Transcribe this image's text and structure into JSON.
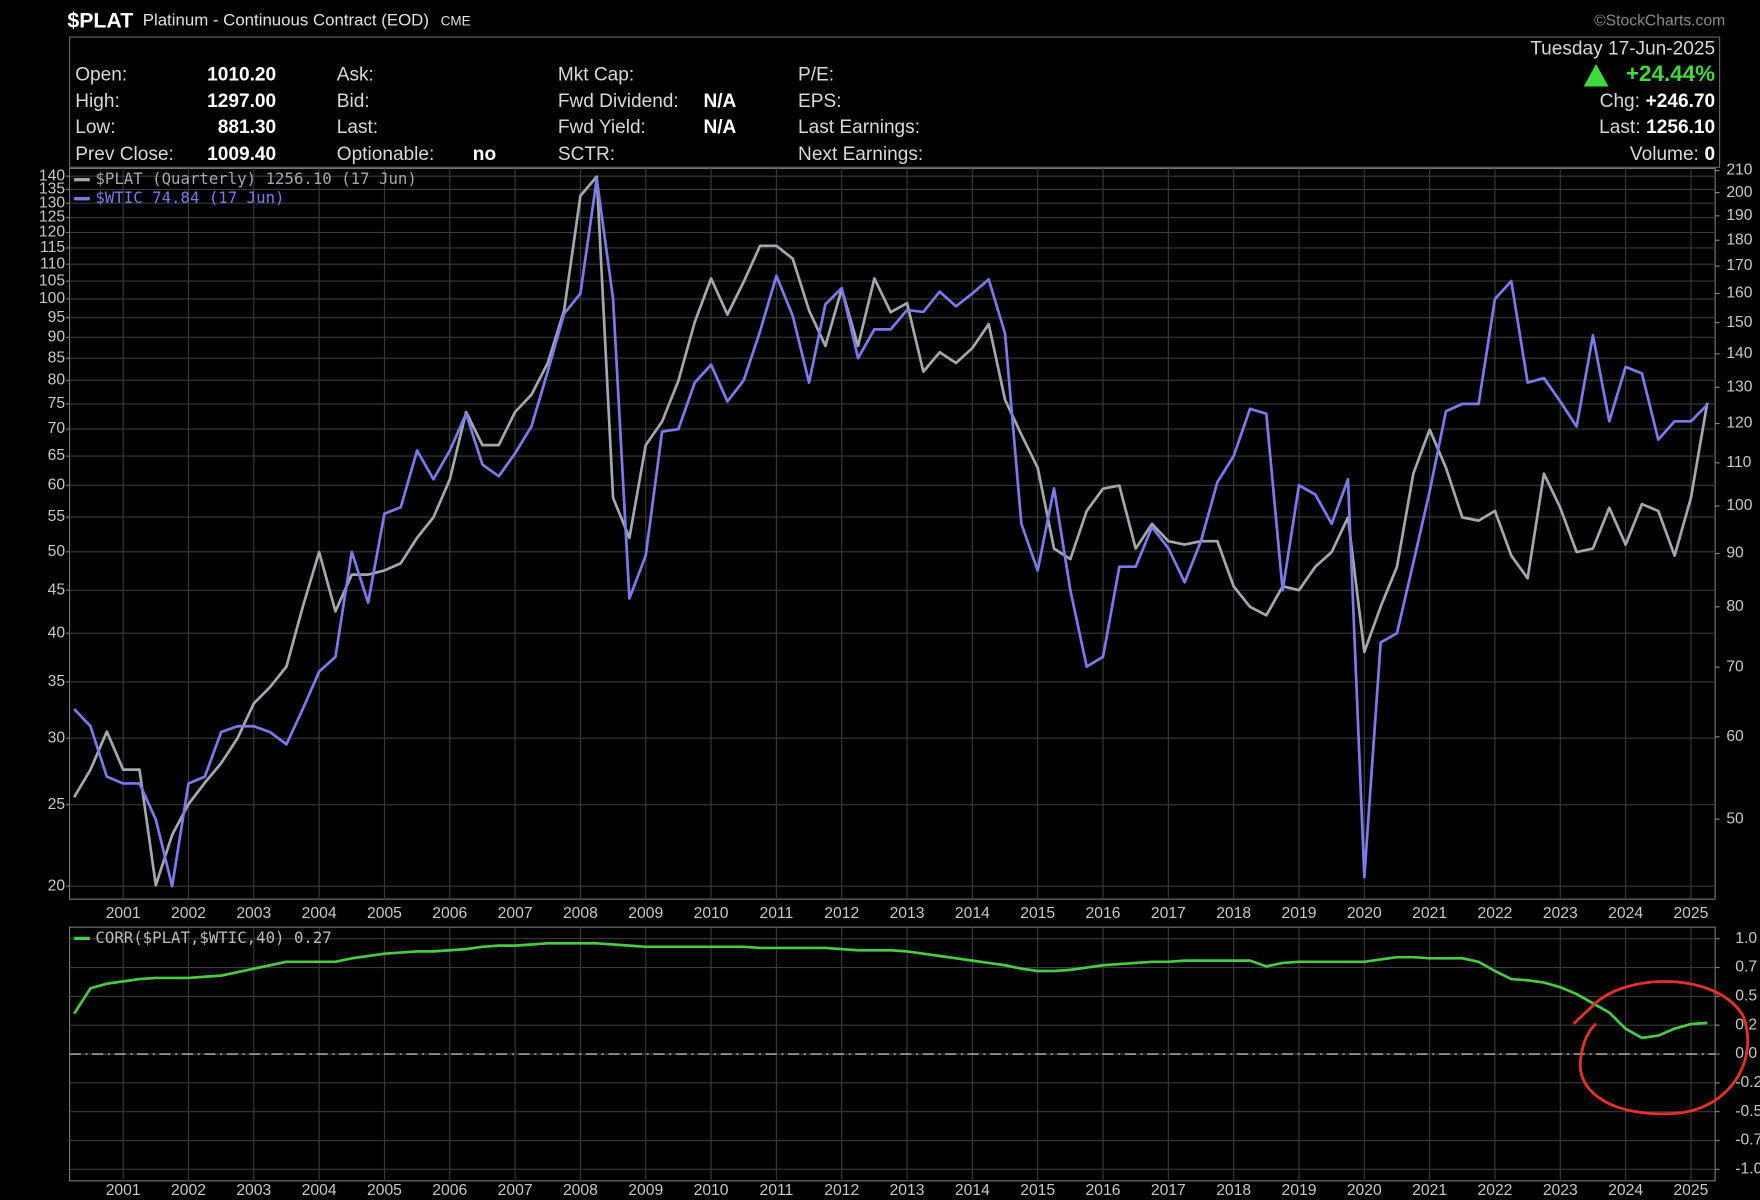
{
  "header": {
    "symbol": "$PLAT",
    "name": "Platinum - Continuous Contract (EOD)",
    "exchange": "CME",
    "watermark": "©StockCharts.com",
    "date": "Tuesday 17-Jun-2025",
    "change_pct": "+24.44%",
    "quote_columns": [
      [
        {
          "label": "Open:",
          "value": "1010.20"
        },
        {
          "label": "High:",
          "value": "1297.00"
        },
        {
          "label": "Low:",
          "value": "881.30"
        },
        {
          "label": "Prev Close:",
          "value": "1009.40"
        }
      ],
      [
        {
          "label": "Ask:"
        },
        {
          "label": "Bid:"
        },
        {
          "label": "Last:"
        },
        {
          "label": "Optionable:",
          "value": "no"
        }
      ],
      [
        {
          "label": "Mkt Cap:"
        },
        {
          "label": "Fwd Dividend:",
          "value": "N/A"
        },
        {
          "label": "Fwd Yield:",
          "value": "N/A"
        },
        {
          "label": "SCTR:"
        }
      ],
      [
        {
          "label": "P/E:"
        },
        {
          "label": "EPS:"
        },
        {
          "label": "Last Earnings:"
        },
        {
          "label": "Next Earnings:"
        }
      ]
    ],
    "quote_right": [
      {
        "label": "Chg:",
        "value": "+246.70"
      },
      {
        "label": "Last:",
        "value": "1256.10"
      },
      {
        "label": "Volume:",
        "value": "0"
      }
    ]
  },
  "chart_data": [
    {
      "type": "line",
      "x": [
        2000.25,
        2000.5,
        2000.75,
        2001,
        2001.25,
        2001.5,
        2001.75,
        2002,
        2002.25,
        2002.5,
        2002.75,
        2003,
        2003.25,
        2003.5,
        2003.75,
        2004,
        2004.25,
        2004.5,
        2004.75,
        2005,
        2005.25,
        2005.5,
        2005.75,
        2006,
        2006.25,
        2006.5,
        2006.75,
        2007,
        2007.25,
        2007.5,
        2007.75,
        2008,
        2008.25,
        2008.5,
        2008.75,
        2009,
        2009.25,
        2009.5,
        2009.75,
        2010,
        2010.25,
        2010.5,
        2010.75,
        2011,
        2011.25,
        2011.5,
        2011.75,
        2012,
        2012.25,
        2012.5,
        2012.75,
        2013,
        2013.25,
        2013.5,
        2013.75,
        2014,
        2014.25,
        2014.5,
        2014.75,
        2015,
        2015.25,
        2015.5,
        2015.75,
        2016,
        2016.25,
        2016.5,
        2016.75,
        2017,
        2017.25,
        2017.5,
        2017.75,
        2018,
        2018.25,
        2018.5,
        2018.75,
        2019,
        2019.25,
        2019.5,
        2019.75,
        2020,
        2020.25,
        2020.5,
        2020.75,
        2021,
        2021.25,
        2021.5,
        2021.75,
        2022,
        2022.25,
        2022.5,
        2022.75,
        2023,
        2023.25,
        2023.5,
        2023.75,
        2024,
        2024.25,
        2024.5,
        2024.75,
        2025,
        2025.25
      ],
      "xlim": [
        2000.18,
        2025.37
      ],
      "xticks": [
        2001,
        2002,
        2003,
        2004,
        2005,
        2006,
        2007,
        2008,
        2009,
        2010,
        2011,
        2012,
        2013,
        2014,
        2015,
        2016,
        2017,
        2018,
        2019,
        2020,
        2021,
        2022,
        2023,
        2024,
        2025
      ],
      "ylim": [
        19.3,
        143
      ],
      "yticks": [
        20,
        25,
        30,
        35,
        40,
        45,
        50,
        55,
        60,
        65,
        70,
        75,
        80,
        85,
        90,
        95,
        100,
        105,
        110,
        115,
        120,
        125,
        130,
        135,
        140
      ],
      "y2lim": [
        41.9,
        211
      ],
      "y2ticks": [
        50,
        60,
        70,
        80,
        90,
        100,
        110,
        120,
        130,
        140,
        150,
        160,
        170,
        180,
        190,
        200,
        210
      ],
      "log_scale": true,
      "grid": true,
      "legend": "top-left",
      "series": [
        {
          "name": "$PLAT (Quarterly) 1256.10 (17 Jun)",
          "color": "#a4a7ab",
          "axis": "y2",
          "values": [
            52.5,
            55.8,
            60.7,
            55.8,
            55.8,
            43.2,
            48.3,
            51.7,
            54.2,
            56.6,
            59.8,
            64.6,
            67.0,
            70.1,
            80.0,
            90.3,
            79.2,
            85.9,
            85.9,
            86.7,
            88.1,
            93.2,
            97.5,
            106.0,
            123.1,
            114.4,
            114.4,
            123.1,
            127.9,
            137.2,
            154.1,
            198.6,
            207.2,
            101.8,
            93.2,
            114.4,
            120.5,
            131.9,
            150.2,
            165.4,
            152.7,
            164.2,
            177.8,
            177.8,
            172.8,
            154.1,
            142.5,
            161.6,
            142.5,
            165.4,
            153.5,
            156.6,
            134.6,
            140.5,
            137.2,
            141.8,
            149.5,
            126.5,
            117.1,
            108.8,
            91.0,
            88.9,
            98.9,
            103.9,
            104.6,
            91.0,
            96.1,
            92.5,
            91.8,
            92.5,
            92.5,
            83.7,
            80.0,
            78.5,
            83.7,
            83.0,
            87.4,
            90.3,
            97.5,
            72.4,
            80.0,
            87.4,
            107.4,
            118.4,
            108.8,
            97.5,
            96.8,
            98.9,
            89.6,
            85.2,
            107.4,
            99.6,
            90.3,
            91.0,
            99.6,
            91.8,
            100.4,
            98.9,
            89.6,
            101.8,
            125.61
          ]
        },
        {
          "name": "$WTIC 74.84 (17 Jun)",
          "color": "#7c7aea",
          "values": [
            32.5,
            31,
            27,
            26.5,
            26.5,
            24,
            20,
            26.5,
            27,
            30.5,
            31,
            31,
            30.5,
            29.5,
            32.5,
            36,
            37.5,
            50,
            43.5,
            55.5,
            56.5,
            66,
            61,
            66,
            73,
            63.5,
            61.5,
            65.5,
            70.5,
            82,
            96,
            101.5,
            139,
            100,
            44,
            49.5,
            69.5,
            70,
            79.5,
            83.5,
            75.5,
            80,
            91.5,
            106.5,
            95.5,
            79.5,
            98.5,
            103,
            85,
            92,
            92,
            97,
            96.5,
            102,
            98,
            101.5,
            105.5,
            91,
            54,
            47.5,
            59.5,
            45,
            36.5,
            37.5,
            48,
            48,
            53.5,
            50.5,
            46,
            51.5,
            60.5,
            65,
            74,
            73,
            45,
            60,
            58.5,
            54,
            61,
            20.5,
            39,
            40,
            48.5,
            59,
            73.5,
            75,
            75,
            100,
            105,
            79.5,
            80.5,
            75.5,
            70.5,
            90.5,
            71.5,
            83,
            81.5,
            68,
            71.5,
            71.5,
            74.84
          ]
        }
      ]
    },
    {
      "type": "line",
      "x": [
        2000.25,
        2000.5,
        2000.75,
        2001,
        2001.25,
        2001.5,
        2001.75,
        2002,
        2002.25,
        2002.5,
        2002.75,
        2003,
        2003.25,
        2003.5,
        2003.75,
        2004,
        2004.25,
        2004.5,
        2004.75,
        2005,
        2005.25,
        2005.5,
        2005.75,
        2006,
        2006.25,
        2006.5,
        2006.75,
        2007,
        2007.25,
        2007.5,
        2007.75,
        2008,
        2008.25,
        2008.5,
        2008.75,
        2009,
        2009.25,
        2009.5,
        2009.75,
        2010,
        2010.25,
        2010.5,
        2010.75,
        2011,
        2011.25,
        2011.5,
        2011.75,
        2012,
        2012.25,
        2012.5,
        2012.75,
        2013,
        2013.25,
        2013.5,
        2013.75,
        2014,
        2014.25,
        2014.5,
        2014.75,
        2015,
        2015.25,
        2015.5,
        2015.75,
        2016,
        2016.25,
        2016.5,
        2016.75,
        2017,
        2017.25,
        2017.5,
        2017.75,
        2018,
        2018.25,
        2018.5,
        2018.75,
        2019,
        2019.25,
        2019.5,
        2019.75,
        2020,
        2020.25,
        2020.5,
        2020.75,
        2021,
        2021.25,
        2021.5,
        2021.75,
        2022,
        2022.25,
        2022.5,
        2022.75,
        2023,
        2023.25,
        2023.5,
        2023.75,
        2024,
        2024.25,
        2024.5,
        2024.75,
        2025,
        2025.25
      ],
      "xlim": [
        2000.18,
        2025.37
      ],
      "xticks": [
        2001,
        2002,
        2003,
        2004,
        2005,
        2006,
        2007,
        2008,
        2009,
        2010,
        2011,
        2012,
        2013,
        2014,
        2015,
        2016,
        2017,
        2018,
        2019,
        2020,
        2021,
        2022,
        2023,
        2024,
        2025
      ],
      "ylim": [
        -1.1,
        1.1
      ],
      "yticks": [
        {
          "value": 1,
          "label": "1.0"
        },
        {
          "value": 0.75,
          "label": "0.7"
        },
        0.5,
        {
          "value": 0.25,
          "label": "0.2"
        },
        {
          "value": 0,
          "label": "0.0"
        },
        {
          "value": -0.25,
          "label": "-0.2"
        },
        -0.5,
        {
          "value": -0.75,
          "label": "-0.7"
        },
        {
          "value": -1,
          "label": "-1.0"
        }
      ],
      "grid": true,
      "hline": 0,
      "legend": "top-left",
      "series": [
        {
          "name": "CORR($PLAT,$WTIC,40) 0.27",
          "color": "#4cc944",
          "values": [
            0.35,
            0.57,
            0.61,
            0.63,
            0.65,
            0.66,
            0.66,
            0.66,
            0.67,
            0.68,
            0.71,
            0.74,
            0.77,
            0.8,
            0.8,
            0.8,
            0.8,
            0.83,
            0.85,
            0.87,
            0.88,
            0.89,
            0.89,
            0.9,
            0.91,
            0.93,
            0.94,
            0.94,
            0.95,
            0.96,
            0.96,
            0.96,
            0.96,
            0.95,
            0.94,
            0.93,
            0.93,
            0.93,
            0.93,
            0.93,
            0.93,
            0.93,
            0.92,
            0.92,
            0.92,
            0.92,
            0.92,
            0.91,
            0.9,
            0.9,
            0.9,
            0.89,
            0.87,
            0.85,
            0.83,
            0.81,
            0.79,
            0.77,
            0.74,
            0.72,
            0.72,
            0.73,
            0.75,
            0.77,
            0.78,
            0.79,
            0.8,
            0.8,
            0.81,
            0.81,
            0.81,
            0.81,
            0.81,
            0.76,
            0.79,
            0.8,
            0.8,
            0.8,
            0.8,
            0.8,
            0.82,
            0.84,
            0.84,
            0.83,
            0.83,
            0.83,
            0.8,
            0.72,
            0.65,
            0.64,
            0.62,
            0.58,
            0.52,
            0.44,
            0.36,
            0.22,
            0.14,
            0.16,
            0.22,
            0.26,
            0.27
          ]
        }
      ]
    }
  ]
}
